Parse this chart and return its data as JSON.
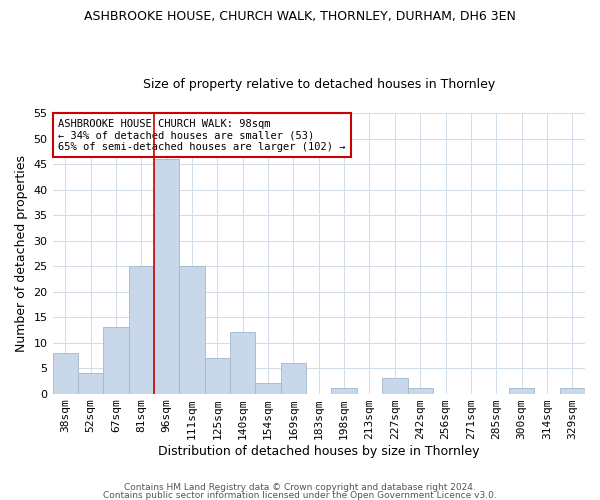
{
  "title": "ASHBROOKE HOUSE, CHURCH WALK, THORNLEY, DURHAM, DH6 3EN",
  "subtitle": "Size of property relative to detached houses in Thornley",
  "xlabel": "Distribution of detached houses by size in Thornley",
  "ylabel": "Number of detached properties",
  "bar_color": "#c8d8ea",
  "bar_edgecolor": "#a0b8cc",
  "grid_color": "#d0dce8",
  "categories": [
    "38sqm",
    "52sqm",
    "67sqm",
    "81sqm",
    "96sqm",
    "111sqm",
    "125sqm",
    "140sqm",
    "154sqm",
    "169sqm",
    "183sqm",
    "198sqm",
    "213sqm",
    "227sqm",
    "242sqm",
    "256sqm",
    "271sqm",
    "285sqm",
    "300sqm",
    "314sqm",
    "329sqm"
  ],
  "values": [
    8,
    4,
    13,
    25,
    46,
    25,
    7,
    12,
    2,
    6,
    0,
    1,
    0,
    3,
    1,
    0,
    0,
    0,
    1,
    0,
    1
  ],
  "ylim": [
    0,
    55
  ],
  "yticks": [
    0,
    5,
    10,
    15,
    20,
    25,
    30,
    35,
    40,
    45,
    50,
    55
  ],
  "vline_color": "#cc0000",
  "vline_pos": 3.5,
  "annotation_text": "ASHBROOKE HOUSE CHURCH WALK: 98sqm\n← 34% of detached houses are smaller (53)\n65% of semi-detached houses are larger (102) →",
  "annotation_box_edgecolor": "#cc0000",
  "footer1": "Contains HM Land Registry data © Crown copyright and database right 2024.",
  "footer2": "Contains public sector information licensed under the Open Government Licence v3.0.",
  "background_color": "#ffffff",
  "title_fontsize": 9,
  "subtitle_fontsize": 9,
  "axis_label_fontsize": 9,
  "tick_fontsize": 8,
  "annotation_fontsize": 7.5,
  "footer_fontsize": 6.5
}
